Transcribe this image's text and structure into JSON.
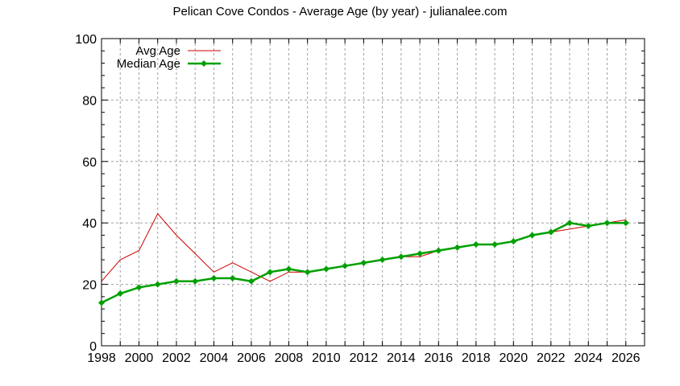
{
  "chart_data": {
    "type": "line",
    "title": "Pelican Cove Condos - Average Age (by year) - julianalee.com",
    "xlabel": "",
    "ylabel": "",
    "x": [
      1998,
      1999,
      2000,
      2001,
      2002,
      2003,
      2004,
      2005,
      2006,
      2007,
      2008,
      2009,
      2010,
      2011,
      2012,
      2013,
      2014,
      2015,
      2016,
      2017,
      2018,
      2019,
      2020,
      2021,
      2022,
      2023,
      2024,
      2025,
      2026
    ],
    "series": [
      {
        "name": "Avg Age",
        "color": "#cc0000",
        "marker": "none",
        "values": [
          21,
          28,
          31,
          43,
          36,
          30,
          24,
          27,
          24,
          21,
          24,
          24,
          25,
          26,
          27,
          28,
          29,
          29,
          31,
          32,
          33,
          33,
          34,
          36,
          37,
          38,
          39,
          40,
          41
        ]
      },
      {
        "name": "Median Age",
        "color": "#00a000",
        "marker": "diamond",
        "values": [
          14,
          17,
          19,
          20,
          21,
          21,
          22,
          22,
          21,
          24,
          25,
          24,
          25,
          26,
          27,
          28,
          29,
          30,
          31,
          32,
          33,
          33,
          34,
          36,
          37,
          40,
          39,
          40,
          40
        ]
      }
    ],
    "xlim": [
      1998,
      2027
    ],
    "ylim": [
      0,
      100
    ],
    "xticks": [
      "1998",
      "2000",
      "2002",
      "2004",
      "2006",
      "2008",
      "2010",
      "2012",
      "2014",
      "2016",
      "2018",
      "2020",
      "2022",
      "2024",
      "2026"
    ],
    "yticks": [
      "0",
      "20",
      "40",
      "60",
      "80",
      "100"
    ],
    "grid": true,
    "legend_position": "top-left"
  }
}
